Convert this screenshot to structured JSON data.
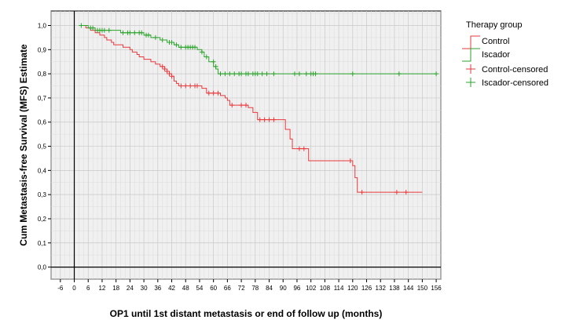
{
  "chart_data": {
    "type": "line",
    "step": true,
    "xlabel": "OP1 until 1st distant metastasis or end of follow up (months)",
    "ylabel": "Cum Metastasis-free Survival (MFS) Estimate",
    "xlim": [
      -10,
      158
    ],
    "ylim": [
      -0.05,
      1.06
    ],
    "x_ticks": [
      -6,
      0,
      6,
      12,
      18,
      24,
      30,
      36,
      42,
      48,
      54,
      60,
      66,
      72,
      78,
      84,
      90,
      96,
      102,
      108,
      114,
      120,
      126,
      132,
      138,
      144,
      150,
      156
    ],
    "y_ticks": [
      0.0,
      0.1,
      0.2,
      0.3,
      0.4,
      0.5,
      0.6,
      0.7,
      0.8,
      0.9,
      1.0
    ],
    "tick_labels_x": [
      "-6",
      "0",
      "6",
      "12",
      "18",
      "24",
      "30",
      "36",
      "42",
      "48",
      "54",
      "60",
      "66",
      "72",
      "78",
      "84",
      "90",
      "96",
      "102",
      "108",
      "114",
      "120",
      "126",
      "132",
      "138",
      "144",
      "150",
      "156"
    ],
    "tick_labels_y": [
      "0,0",
      "0,1",
      "0,2",
      "0,3",
      "0,4",
      "0,5",
      "0,6",
      "0,7",
      "0,8",
      "0,9",
      "1,0"
    ],
    "grid": true,
    "legend": {
      "title": "Therapy group",
      "placement": "top-right",
      "entries": [
        "Control",
        "Iscador",
        "Control-censored",
        "Iscador-censored"
      ]
    },
    "series": [
      {
        "name": "Control",
        "color": "#e8383b",
        "points": [
          [
            3,
            1.0
          ],
          [
            5,
            0.99
          ],
          [
            7,
            0.98
          ],
          [
            9,
            0.97
          ],
          [
            11,
            0.96
          ],
          [
            13,
            0.95
          ],
          [
            14,
            0.94
          ],
          [
            16,
            0.93
          ],
          [
            17,
            0.92
          ],
          [
            21,
            0.91
          ],
          [
            24,
            0.9
          ],
          [
            25,
            0.89
          ],
          [
            27,
            0.88
          ],
          [
            28,
            0.87
          ],
          [
            30,
            0.86
          ],
          [
            33,
            0.85
          ],
          [
            35,
            0.84
          ],
          [
            37,
            0.83
          ],
          [
            39,
            0.82
          ],
          [
            40,
            0.81
          ],
          [
            41,
            0.8
          ],
          [
            42,
            0.79
          ],
          [
            43,
            0.77
          ],
          [
            44,
            0.76
          ],
          [
            45,
            0.75
          ],
          [
            55,
            0.74
          ],
          [
            57,
            0.72
          ],
          [
            63,
            0.71
          ],
          [
            65,
            0.7
          ],
          [
            66,
            0.69
          ],
          [
            67,
            0.67
          ],
          [
            75,
            0.66
          ],
          [
            77,
            0.64
          ],
          [
            79,
            0.61
          ],
          [
            91,
            0.57
          ],
          [
            93,
            0.53
          ],
          [
            94,
            0.49
          ],
          [
            101,
            0.44
          ],
          [
            120,
            0.42
          ],
          [
            121,
            0.37
          ],
          [
            122,
            0.31
          ],
          [
            150,
            0.31
          ]
        ],
        "censored": [
          [
            38,
            0.83
          ],
          [
            39,
            0.82
          ],
          [
            40,
            0.81
          ],
          [
            41,
            0.8
          ],
          [
            42,
            0.79
          ],
          [
            46,
            0.75
          ],
          [
            48,
            0.75
          ],
          [
            50,
            0.75
          ],
          [
            52,
            0.75
          ],
          [
            53,
            0.75
          ],
          [
            58,
            0.72
          ],
          [
            60,
            0.72
          ],
          [
            62,
            0.72
          ],
          [
            68,
            0.67
          ],
          [
            72,
            0.67
          ],
          [
            74,
            0.67
          ],
          [
            80,
            0.61
          ],
          [
            82,
            0.61
          ],
          [
            84,
            0.61
          ],
          [
            86,
            0.61
          ],
          [
            97,
            0.49
          ],
          [
            99,
            0.49
          ],
          [
            119,
            0.44
          ],
          [
            124,
            0.31
          ],
          [
            139,
            0.31
          ],
          [
            143,
            0.31
          ]
        ]
      },
      {
        "name": "Iscador",
        "color": "#2aa32a",
        "points": [
          [
            2,
            1.0
          ],
          [
            6,
            0.99
          ],
          [
            9,
            0.98
          ],
          [
            20,
            0.97
          ],
          [
            30,
            0.96
          ],
          [
            33,
            0.95
          ],
          [
            37,
            0.94
          ],
          [
            40,
            0.93
          ],
          [
            43,
            0.92
          ],
          [
            45,
            0.91
          ],
          [
            53,
            0.9
          ],
          [
            55,
            0.89
          ],
          [
            56,
            0.87
          ],
          [
            58,
            0.85
          ],
          [
            60,
            0.83
          ],
          [
            61,
            0.82
          ],
          [
            62,
            0.8
          ],
          [
            156,
            0.8
          ]
        ],
        "censored": [
          [
            3,
            1.0
          ],
          [
            7,
            0.99
          ],
          [
            8,
            0.99
          ],
          [
            10,
            0.98
          ],
          [
            11,
            0.98
          ],
          [
            12,
            0.98
          ],
          [
            13,
            0.98
          ],
          [
            15,
            0.98
          ],
          [
            21,
            0.97
          ],
          [
            23,
            0.97
          ],
          [
            24,
            0.97
          ],
          [
            26,
            0.97
          ],
          [
            28,
            0.97
          ],
          [
            29,
            0.97
          ],
          [
            31,
            0.96
          ],
          [
            32,
            0.96
          ],
          [
            35,
            0.95
          ],
          [
            38,
            0.94
          ],
          [
            41,
            0.93
          ],
          [
            42,
            0.93
          ],
          [
            44,
            0.92
          ],
          [
            46,
            0.91
          ],
          [
            48,
            0.91
          ],
          [
            49,
            0.91
          ],
          [
            50,
            0.91
          ],
          [
            51,
            0.91
          ],
          [
            52,
            0.91
          ],
          [
            55,
            0.89
          ],
          [
            57,
            0.87
          ],
          [
            60,
            0.85
          ],
          [
            61,
            0.83
          ],
          [
            63,
            0.8
          ],
          [
            65,
            0.8
          ],
          [
            67,
            0.8
          ],
          [
            69,
            0.8
          ],
          [
            71,
            0.8
          ],
          [
            72,
            0.8
          ],
          [
            74,
            0.8
          ],
          [
            75,
            0.8
          ],
          [
            77,
            0.8
          ],
          [
            78,
            0.8
          ],
          [
            79,
            0.8
          ],
          [
            81,
            0.8
          ],
          [
            83,
            0.8
          ],
          [
            86,
            0.8
          ],
          [
            95,
            0.8
          ],
          [
            97,
            0.8
          ],
          [
            100,
            0.8
          ],
          [
            102,
            0.8
          ],
          [
            103,
            0.8
          ],
          [
            104,
            0.8
          ],
          [
            120,
            0.8
          ],
          [
            140,
            0.8
          ],
          [
            156,
            0.8
          ]
        ]
      }
    ]
  }
}
